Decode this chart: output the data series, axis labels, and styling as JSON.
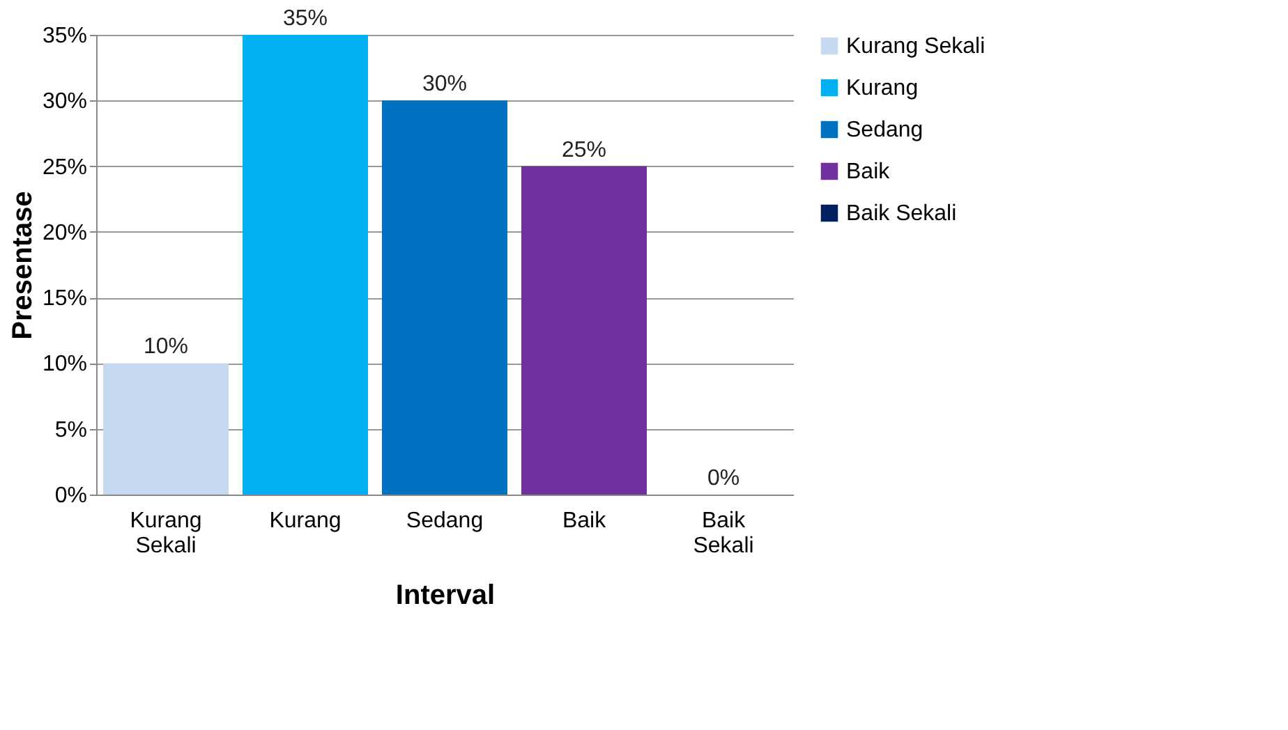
{
  "chart_data": {
    "type": "bar",
    "xlabel": "Interval",
    "ylabel": "Presentase",
    "categories": [
      "Kurang Sekali",
      "Kurang",
      "Sedang",
      "Baik",
      "Baik Sekali"
    ],
    "series": [
      {
        "name": "Kurang Sekali",
        "color": "#c6d9f1",
        "values": [
          10,
          null,
          null,
          null,
          null
        ],
        "value_labels": [
          "10%",
          null,
          null,
          null,
          null
        ]
      },
      {
        "name": "Kurang",
        "color": "#00b0f0",
        "values": [
          null,
          35,
          null,
          null,
          null
        ],
        "value_labels": [
          null,
          "35%",
          null,
          null,
          null
        ]
      },
      {
        "name": "Sedang",
        "color": "#0070c0",
        "values": [
          null,
          null,
          30,
          null,
          null
        ],
        "value_labels": [
          null,
          null,
          "30%",
          null,
          null
        ]
      },
      {
        "name": "Baik",
        "color": "#7030a0",
        "values": [
          null,
          null,
          null,
          25,
          null
        ],
        "value_labels": [
          null,
          null,
          null,
          "25%",
          null
        ]
      },
      {
        "name": "Baik Sekali",
        "color": "#002060",
        "values": [
          null,
          null,
          null,
          null,
          0
        ],
        "value_labels": [
          null,
          null,
          null,
          null,
          "0%"
        ]
      }
    ],
    "ylim": [
      0,
      35
    ],
    "yticks": [
      {
        "value": 0,
        "label": "0%"
      },
      {
        "value": 5,
        "label": "5%"
      },
      {
        "value": 10,
        "label": "10%"
      },
      {
        "value": 15,
        "label": "15%"
      },
      {
        "value": 20,
        "label": "20%"
      },
      {
        "value": 25,
        "label": "25%"
      },
      {
        "value": 30,
        "label": "30%"
      },
      {
        "value": 35,
        "label": "35%"
      }
    ],
    "grid": "y",
    "legend": "right"
  }
}
